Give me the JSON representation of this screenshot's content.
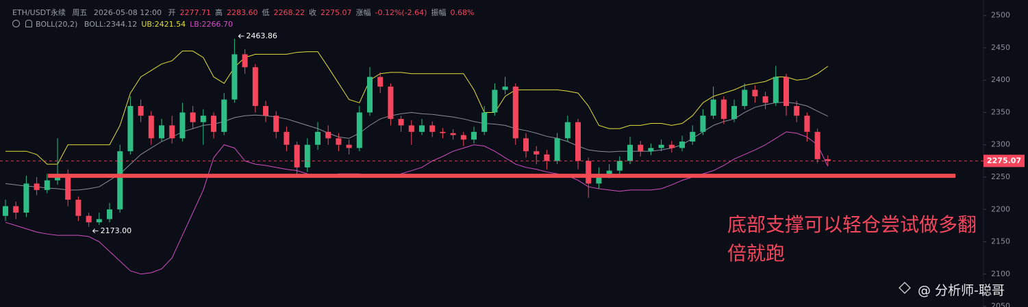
{
  "chart_data": {
    "type": "candlestick",
    "header": {
      "symbol": "ETH/USDT永续",
      "weekday": "周五",
      "datetime": "2026-05-08 12:00",
      "fields": [
        {
          "label": "开",
          "value": "2277.71"
        },
        {
          "label": "高",
          "value": "2283.60"
        },
        {
          "label": "低",
          "value": "2268.22"
        },
        {
          "label": "收",
          "value": "2275.07"
        },
        {
          "label": "涨幅",
          "value": "-0.12%(-2.64)"
        },
        {
          "label": "振幅",
          "value": "0.68%"
        }
      ],
      "indicator": "BOLL(20,2)"
    },
    "up_color": "#2ebd85",
    "down_color": "#f6465d",
    "open": [
      2190,
      2205,
      2195,
      2240,
      2230,
      2245,
      2255,
      2215,
      2190,
      2180,
      2185,
      2200,
      2290,
      2360,
      2345,
      2310,
      2330,
      2310,
      2350,
      2335,
      2345,
      2320,
      2370,
      2440,
      2420,
      2360,
      2345,
      2320,
      2300,
      2265,
      2300,
      2320,
      2310,
      2300,
      2295,
      2350,
      2405,
      2390,
      2340,
      2330,
      2320,
      2330,
      2320,
      2318,
      2315,
      2308,
      2320,
      2350,
      2385,
      2390,
      2310,
      2290,
      2285,
      2275,
      2310,
      2335,
      2275,
      2240,
      2255,
      2260,
      2275,
      2300,
      2290,
      2295,
      2300,
      2295,
      2305,
      2320,
      2345,
      2370,
      2340,
      2360,
      2385,
      2375,
      2365,
      2405,
      2360,
      2345,
      2320,
      2277.71
    ],
    "high": [
      2215,
      2212,
      2252,
      2250,
      2255,
      2310,
      2262,
      2220,
      2195,
      2195,
      2210,
      2300,
      2375,
      2370,
      2352,
      2340,
      2345,
      2365,
      2360,
      2355,
      2350,
      2380,
      2463.86,
      2448,
      2425,
      2368,
      2352,
      2328,
      2305,
      2310,
      2335,
      2330,
      2318,
      2308,
      2360,
      2420,
      2412,
      2395,
      2345,
      2338,
      2340,
      2336,
      2326,
      2324,
      2320,
      2328,
      2360,
      2395,
      2405,
      2395,
      2318,
      2298,
      2292,
      2318,
      2345,
      2340,
      2280,
      2265,
      2270,
      2282,
      2312,
      2306,
      2302,
      2308,
      2306,
      2314,
      2330,
      2355,
      2390,
      2375,
      2370,
      2395,
      2392,
      2382,
      2422,
      2410,
      2368,
      2350,
      2325,
      2283.6
    ],
    "low": [
      2182,
      2185,
      2188,
      2222,
      2225,
      2238,
      2205,
      2182,
      2173,
      2176,
      2180,
      2195,
      2285,
      2335,
      2300,
      2305,
      2302,
      2305,
      2325,
      2300,
      2310,
      2315,
      2365,
      2410,
      2350,
      2335,
      2310,
      2290,
      2255,
      2258,
      2292,
      2300,
      2290,
      2285,
      2290,
      2345,
      2380,
      2330,
      2320,
      2300,
      2315,
      2312,
      2310,
      2308,
      2298,
      2302,
      2315,
      2345,
      2378,
      2300,
      2280,
      2270,
      2262,
      2270,
      2305,
      2262,
      2218,
      2232,
      2248,
      2255,
      2270,
      2282,
      2284,
      2290,
      2288,
      2290,
      2300,
      2315,
      2340,
      2332,
      2335,
      2355,
      2365,
      2355,
      2360,
      2345,
      2335,
      2305,
      2272,
      2268.22
    ],
    "close": [
      2205,
      2195,
      2240,
      2230,
      2245,
      2255,
      2215,
      2190,
      2180,
      2185,
      2200,
      2290,
      2360,
      2345,
      2310,
      2330,
      2310,
      2350,
      2335,
      2345,
      2320,
      2370,
      2440,
      2420,
      2360,
      2345,
      2320,
      2300,
      2265,
      2300,
      2320,
      2310,
      2300,
      2295,
      2350,
      2405,
      2390,
      2340,
      2330,
      2320,
      2330,
      2320,
      2318,
      2315,
      2308,
      2320,
      2350,
      2385,
      2390,
      2310,
      2290,
      2285,
      2275,
      2310,
      2335,
      2275,
      2240,
      2255,
      2260,
      2275,
      2300,
      2290,
      2295,
      2300,
      2295,
      2305,
      2320,
      2345,
      2370,
      2340,
      2360,
      2385,
      2375,
      2365,
      2405,
      2360,
      2345,
      2320,
      2277.71,
      2275.07
    ],
    "series": [
      {
        "name": "BOLL:2344.12",
        "color": "#8a8f9c",
        "values": [
          2240,
          2238,
          2236,
          2235,
          2233,
          2232,
          2230,
          2230,
          2232,
          2235,
          2245,
          2255,
          2270,
          2285,
          2295,
          2305,
          2312,
          2320,
          2325,
          2330,
          2332,
          2336,
          2342,
          2345,
          2346,
          2345,
          2343,
          2340,
          2335,
          2330,
          2325,
          2318,
          2312,
          2310,
          2318,
          2330,
          2340,
          2345,
          2348,
          2350,
          2348,
          2347,
          2345,
          2343,
          2340,
          2336,
          2333,
          2332,
          2330,
          2325,
          2322,
          2318,
          2313,
          2310,
          2305,
          2298,
          2292,
          2290,
          2289,
          2290,
          2290,
          2290,
          2290,
          2292,
          2295,
          2300,
          2310,
          2320,
          2330,
          2336,
          2340,
          2350,
          2358,
          2362,
          2365,
          2366,
          2364,
          2360,
          2352,
          2344.12
        ]
      },
      {
        "name": "UB:2421.54",
        "color": "#e6de3c",
        "values": [
          2290,
          2290,
          2290,
          2285,
          2270,
          2270,
          2300,
          2300,
          2300,
          2300,
          2300,
          2330,
          2380,
          2405,
          2415,
          2425,
          2430,
          2445,
          2445,
          2435,
          2405,
          2395,
          2420,
          2435,
          2440,
          2440,
          2440,
          2440,
          2443,
          2444,
          2444,
          2420,
          2395,
          2370,
          2365,
          2400,
          2410,
          2412,
          2412,
          2410,
          2410,
          2410,
          2410,
          2410,
          2410,
          2385,
          2350,
          2350,
          2375,
          2385,
          2385,
          2385,
          2385,
          2385,
          2383,
          2380,
          2360,
          2330,
          2325,
          2325,
          2330,
          2330,
          2333,
          2333,
          2330,
          2333,
          2345,
          2365,
          2375,
          2380,
          2385,
          2392,
          2395,
          2398,
          2405,
          2405,
          2400,
          2402,
          2410,
          2421.54
        ]
      },
      {
        "name": "LB:2266.70",
        "color": "#d54fc4",
        "values": [
          2180,
          2175,
          2170,
          2165,
          2162,
          2160,
          2160,
          2160,
          2158,
          2150,
          2135,
          2120,
          2105,
          2100,
          2102,
          2108,
          2125,
          2160,
          2195,
          2230,
          2280,
          2300,
          2295,
          2275,
          2270,
          2268,
          2265,
          2262,
          2260,
          2255,
          2250,
          2250,
          2255,
          2255,
          2255,
          2252,
          2250,
          2250,
          2255,
          2260,
          2265,
          2275,
          2282,
          2290,
          2295,
          2300,
          2298,
          2290,
          2280,
          2270,
          2265,
          2262,
          2258,
          2255,
          2252,
          2245,
          2235,
          2232,
          2230,
          2228,
          2230,
          2230,
          2230,
          2232,
          2238,
          2245,
          2250,
          2255,
          2260,
          2268,
          2278,
          2285,
          2292,
          2300,
          2310,
          2320,
          2318,
          2312,
          2300,
          2266.7
        ]
      }
    ],
    "ylim": [
      2049,
      2524
    ],
    "yticks": [
      2050,
      2100,
      2150,
      2200,
      2250,
      2300,
      2350,
      2400,
      2450,
      2500
    ],
    "max_label": "2463.86",
    "min_label": "2173.00",
    "last_price_label": "2275.07",
    "support_level": 2252,
    "support_color": "#f04a52",
    "note_lines": [
      "底部支撑可以轻仓尝试做多翻",
      "倍就跑"
    ],
    "watermark": "@ 分析师-聪哥"
  }
}
